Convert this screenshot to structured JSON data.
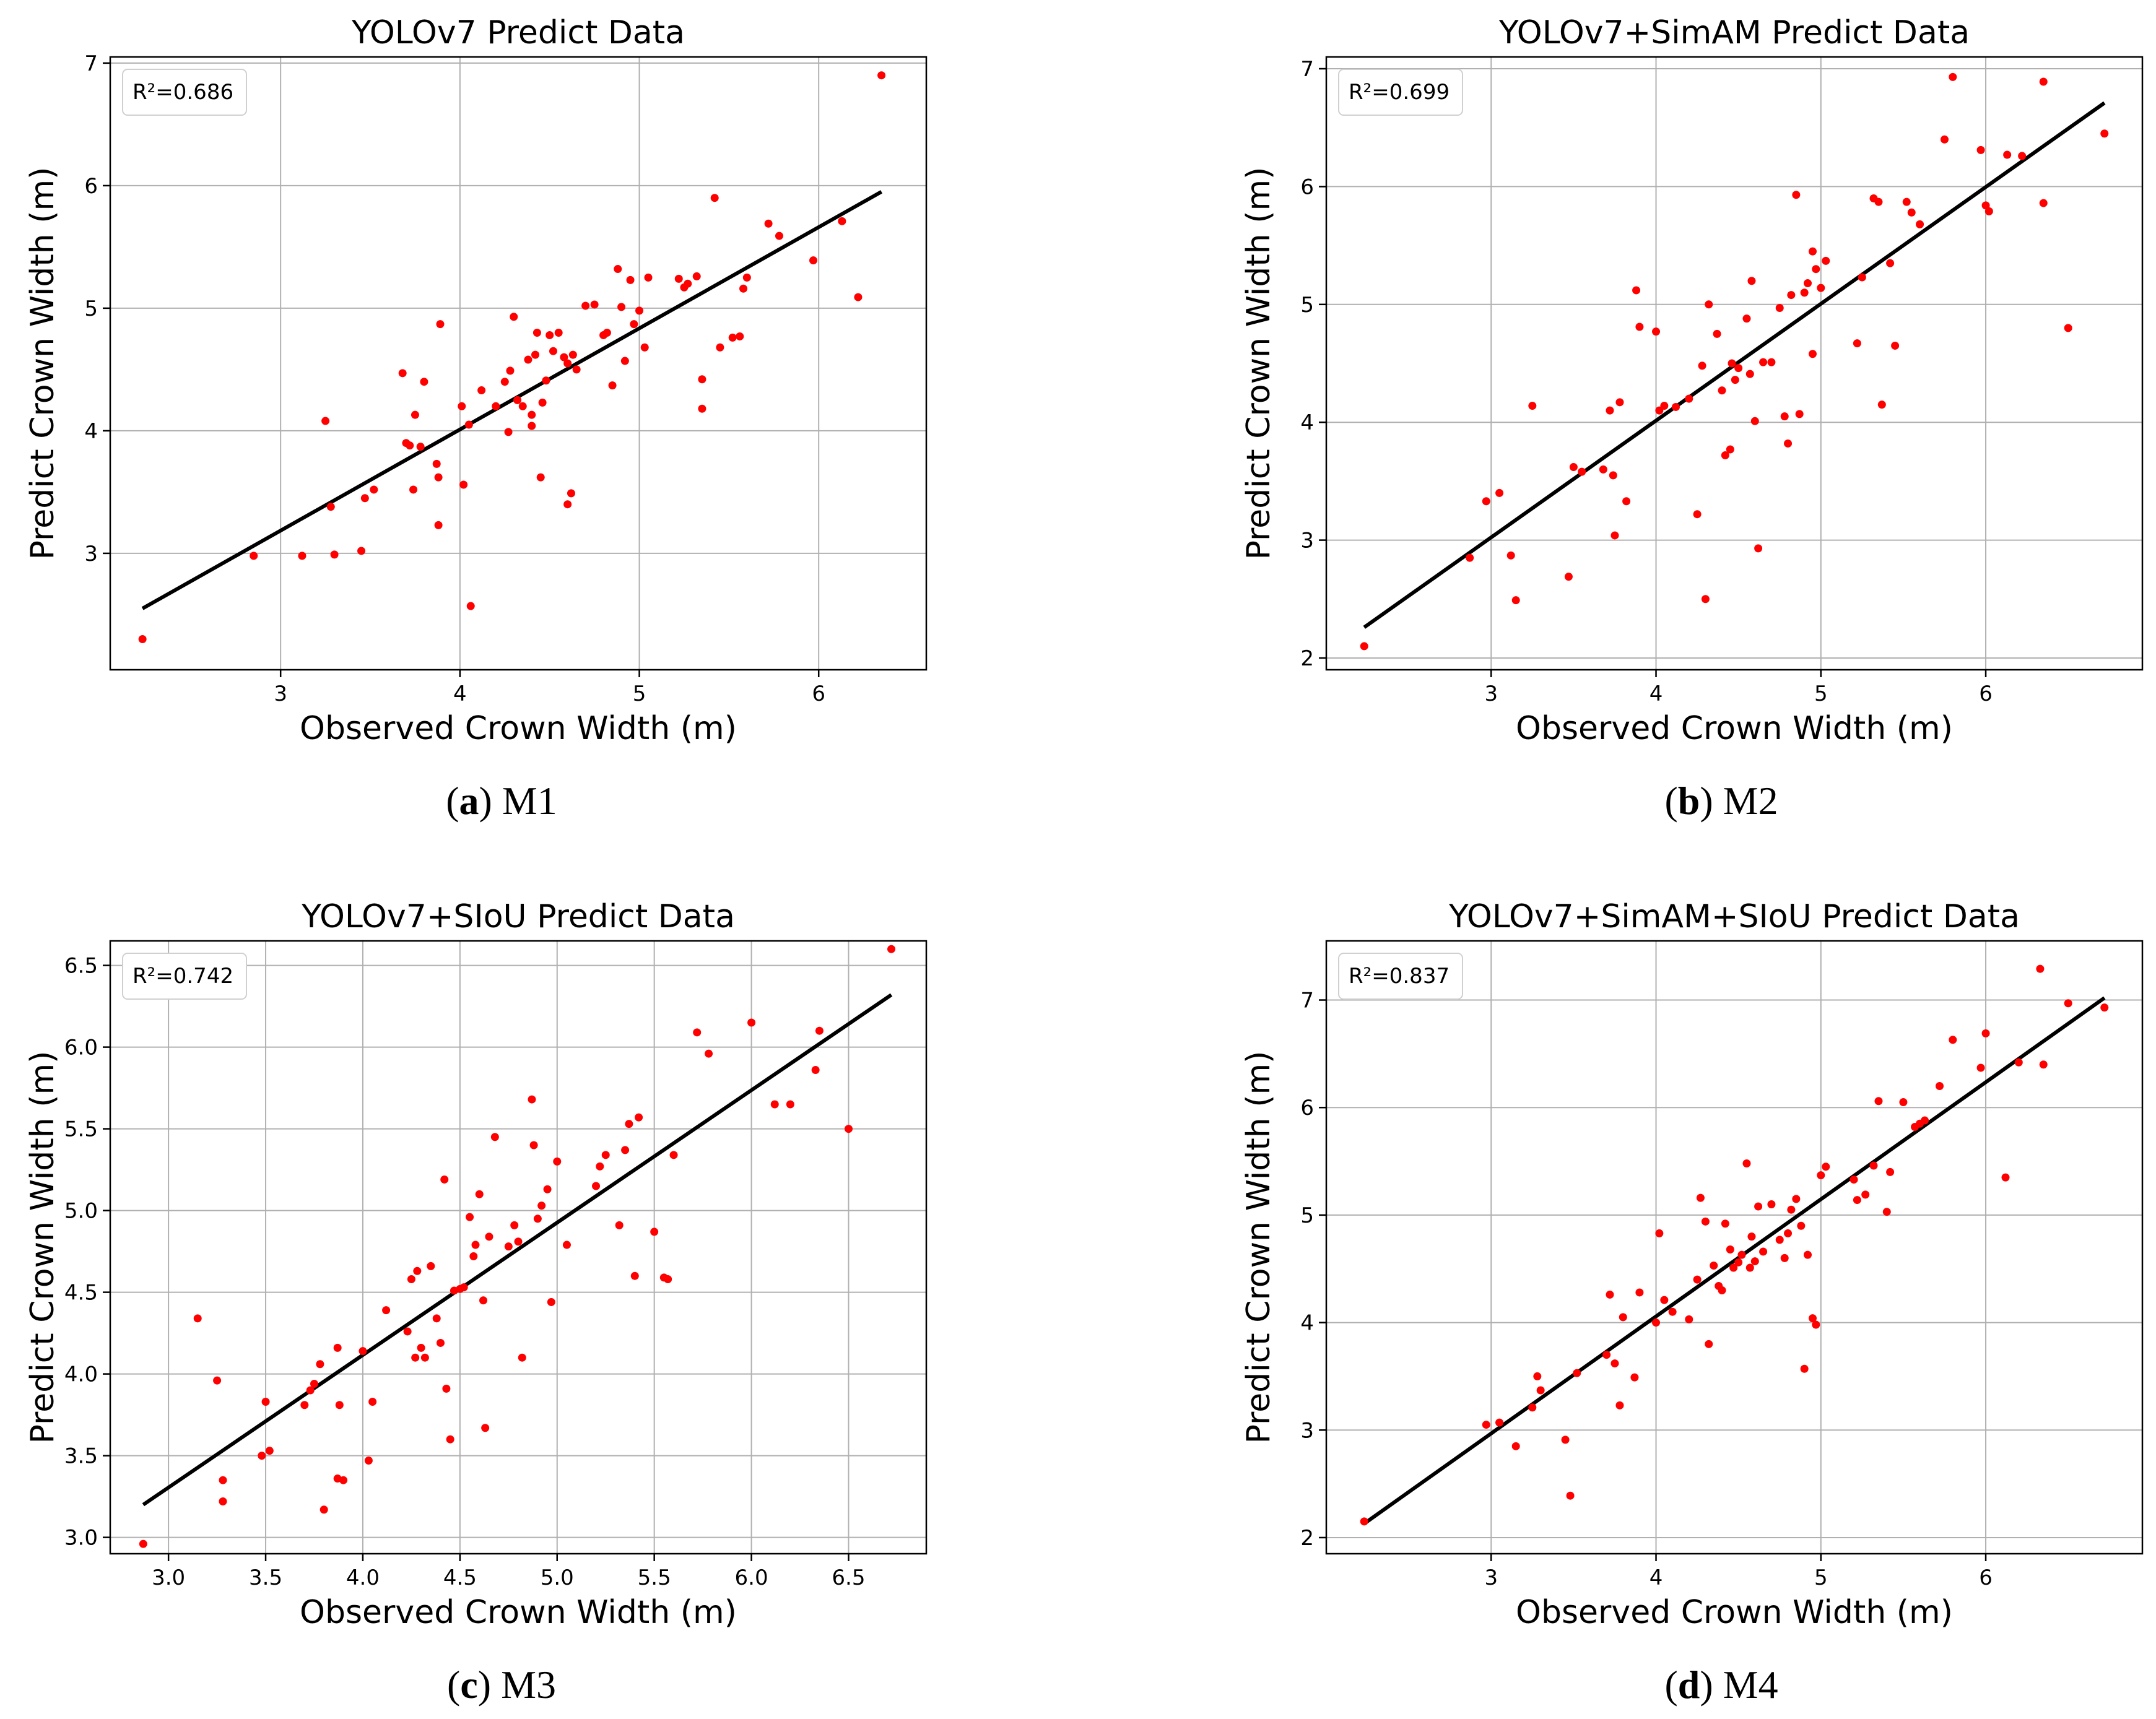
{
  "chart_data": [
    {
      "type": "scatter",
      "title": "YOLOv7 Predict Data",
      "xlabel": "Observed Crown Width   (m)",
      "ylabel": "Predict Crown Width     (m)",
      "annotation": "R²=0.686",
      "caption_letter": "a",
      "caption_model": "M1",
      "xlim": [
        2.05,
        6.6
      ],
      "ylim": [
        2.05,
        7.05
      ],
      "xticks": [
        3,
        4,
        5,
        6
      ],
      "yticks": [
        3,
        4,
        5,
        6,
        7
      ],
      "xtick_labels": [
        "3",
        "4",
        "5",
        "6"
      ],
      "ytick_labels": [
        "3",
        "4",
        "5",
        "6",
        "7"
      ],
      "fit_line": {
        "x": [
          2.23,
          6.35
        ],
        "y": [
          2.55,
          5.95
        ]
      },
      "series": [
        {
          "name": "points",
          "color": "#ff0000",
          "x": [
            2.23,
            2.85,
            3.12,
            3.25,
            3.28,
            3.3,
            3.45,
            3.47,
            3.52,
            3.68,
            3.7,
            3.72,
            3.74,
            3.75,
            3.78,
            3.8,
            3.87,
            3.88,
            3.88,
            3.89,
            4.01,
            4.02,
            4.05,
            4.06,
            4.12,
            4.2,
            4.25,
            4.27,
            4.28,
            4.3,
            4.32,
            4.35,
            4.38,
            4.4,
            4.4,
            4.42,
            4.43,
            4.45,
            4.46,
            4.48,
            4.5,
            4.52,
            4.55,
            4.58,
            4.6,
            4.6,
            4.62,
            4.63,
            4.65,
            4.7,
            4.75,
            4.8,
            4.82,
            4.85,
            4.88,
            4.9,
            4.92,
            4.95,
            4.97,
            5.0,
            5.03,
            5.05,
            5.22,
            5.25,
            5.27,
            5.32,
            5.35,
            5.35,
            5.42,
            5.45,
            5.52,
            5.56,
            5.58,
            5.6,
            5.72,
            5.78,
            5.97,
            6.13,
            6.22,
            6.35
          ],
          "y": [
            2.3,
            2.98,
            2.98,
            4.08,
            3.38,
            2.99,
            3.02,
            3.45,
            3.52,
            4.47,
            3.9,
            3.88,
            3.52,
            4.13,
            3.87,
            4.4,
            3.73,
            3.23,
            3.62,
            4.87,
            4.2,
            3.56,
            4.05,
            2.57,
            4.33,
            4.2,
            4.4,
            3.99,
            4.49,
            4.93,
            4.25,
            4.2,
            4.58,
            4.13,
            4.04,
            4.62,
            4.8,
            3.62,
            4.23,
            4.41,
            4.78,
            4.65,
            4.8,
            4.6,
            3.4,
            4.55,
            3.49,
            4.62,
            4.5,
            5.02,
            5.03,
            4.78,
            4.8,
            4.37,
            5.32,
            5.01,
            4.57,
            5.23,
            4.87,
            4.98,
            4.68,
            5.25,
            5.24,
            5.17,
            5.2,
            5.26,
            4.42,
            4.18,
            5.9,
            4.68,
            4.76,
            4.77,
            5.16,
            5.25,
            5.69,
            5.59,
            5.39,
            5.71,
            5.09,
            6.9
          ]
        }
      ]
    },
    {
      "type": "scatter",
      "title": "YOLOv7+SimAM Predict Data",
      "xlabel": "Observed Crown Width   (m)",
      "ylabel": "Predict Crown Width     (m)",
      "annotation": "R²=0.699",
      "caption_letter": "b",
      "caption_model": "M2",
      "xlim": [
        2.0,
        6.95
      ],
      "ylim": [
        1.9,
        7.1
      ],
      "xticks": [
        3,
        4,
        5,
        6
      ],
      "yticks": [
        2,
        3,
        4,
        5,
        6,
        7
      ],
      "xtick_labels": [
        "3",
        "4",
        "5",
        "6"
      ],
      "ytick_labels": [
        "2",
        "3",
        "4",
        "5",
        "6",
        "7"
      ],
      "fit_line": {
        "x": [
          2.23,
          6.72
        ],
        "y": [
          2.26,
          6.71
        ]
      },
      "series": [
        {
          "name": "points",
          "color": "#ff0000",
          "x": [
            2.23,
            2.87,
            2.97,
            3.05,
            3.12,
            3.15,
            3.25,
            3.47,
            3.5,
            3.55,
            3.68,
            3.72,
            3.74,
            3.75,
            3.78,
            3.82,
            3.88,
            3.9,
            4.0,
            4.02,
            4.05,
            4.12,
            4.2,
            4.25,
            4.28,
            4.3,
            4.32,
            4.37,
            4.4,
            4.42,
            4.45,
            4.46,
            4.48,
            4.5,
            4.55,
            4.57,
            4.58,
            4.6,
            4.62,
            4.65,
            4.7,
            4.75,
            4.78,
            4.8,
            4.82,
            4.85,
            4.87,
            4.9,
            4.92,
            4.95,
            4.95,
            4.97,
            5.0,
            5.03,
            5.22,
            5.25,
            5.32,
            5.35,
            5.37,
            5.42,
            5.45,
            5.52,
            5.55,
            5.6,
            5.75,
            5.8,
            5.97,
            6.0,
            6.02,
            6.13,
            6.22,
            6.35,
            6.35,
            6.5,
            6.72
          ],
          "y": [
            2.1,
            2.85,
            3.33,
            3.4,
            2.87,
            2.49,
            4.14,
            2.69,
            3.62,
            3.58,
            3.6,
            4.1,
            3.55,
            3.04,
            4.17,
            3.33,
            5.12,
            4.81,
            4.77,
            4.1,
            4.14,
            4.13,
            4.2,
            3.22,
            4.48,
            2.5,
            5.0,
            4.75,
            4.27,
            3.72,
            3.77,
            4.5,
            4.36,
            4.46,
            4.88,
            4.41,
            5.2,
            4.01,
            2.93,
            4.51,
            4.51,
            4.97,
            4.05,
            3.82,
            5.08,
            5.93,
            4.07,
            5.1,
            5.18,
            5.45,
            4.58,
            5.3,
            5.14,
            5.37,
            4.67,
            5.23,
            5.9,
            5.87,
            4.15,
            5.35,
            4.65,
            5.87,
            5.78,
            5.68,
            6.4,
            6.93,
            6.31,
            5.84,
            5.79,
            6.27,
            6.26,
            5.86,
            6.89,
            4.8,
            6.45
          ]
        }
      ]
    },
    {
      "type": "scatter",
      "title": "YOLOv7+SIoU Predict Data",
      "xlabel": "Observed Crown Width   (m)",
      "ylabel": "Predict Crown Width     (m)",
      "annotation": "R²=0.742",
      "caption_letter": "c",
      "caption_model": "M3",
      "xlim": [
        2.7,
        6.9
      ],
      "ylim": [
        2.9,
        6.65
      ],
      "xticks": [
        3.0,
        3.5,
        4.0,
        4.5,
        5.0,
        5.5,
        6.0,
        6.5
      ],
      "yticks": [
        3.0,
        3.5,
        4.0,
        4.5,
        5.0,
        5.5,
        6.0,
        6.5
      ],
      "xtick_labels": [
        "3.0",
        "3.5",
        "4.0",
        "4.5",
        "5.0",
        "5.5",
        "6.0",
        "6.5"
      ],
      "ytick_labels": [
        "3.0",
        "3.5",
        "4.0",
        "4.5",
        "5.0",
        "5.5",
        "6.0",
        "6.5"
      ],
      "fit_line": {
        "x": [
          2.87,
          6.72
        ],
        "y": [
          3.2,
          6.32
        ]
      },
      "series": [
        {
          "name": "points",
          "color": "#ff0000",
          "x": [
            2.87,
            3.15,
            3.25,
            3.28,
            3.28,
            3.48,
            3.5,
            3.52,
            3.7,
            3.73,
            3.75,
            3.78,
            3.8,
            3.87,
            3.87,
            3.88,
            3.9,
            4.0,
            4.03,
            4.05,
            4.12,
            4.23,
            4.25,
            4.27,
            4.28,
            4.3,
            4.32,
            4.35,
            4.38,
            4.4,
            4.42,
            4.43,
            4.45,
            4.47,
            4.5,
            4.52,
            4.55,
            4.57,
            4.58,
            4.6,
            4.62,
            4.63,
            4.65,
            4.68,
            4.75,
            4.78,
            4.8,
            4.82,
            4.87,
            4.88,
            4.9,
            4.92,
            4.95,
            4.97,
            5.0,
            5.05,
            5.2,
            5.22,
            5.25,
            5.32,
            5.35,
            5.37,
            5.4,
            5.42,
            5.5,
            5.55,
            5.57,
            5.6,
            5.72,
            5.78,
            6.0,
            6.12,
            6.2,
            6.33,
            6.35,
            6.5,
            6.72
          ],
          "y": [
            2.96,
            4.34,
            3.96,
            3.35,
            3.22,
            3.5,
            3.83,
            3.53,
            3.81,
            3.9,
            3.94,
            4.06,
            3.17,
            3.36,
            4.16,
            3.81,
            3.35,
            4.14,
            3.47,
            3.83,
            4.39,
            4.26,
            4.58,
            4.1,
            4.63,
            4.16,
            4.1,
            4.66,
            4.34,
            4.19,
            5.19,
            3.91,
            3.6,
            4.51,
            4.52,
            4.53,
            4.96,
            4.72,
            4.79,
            5.1,
            4.45,
            3.67,
            4.84,
            5.45,
            4.78,
            4.91,
            4.81,
            4.1,
            5.68,
            5.4,
            4.95,
            5.03,
            5.13,
            4.44,
            5.3,
            4.79,
            5.15,
            5.27,
            5.34,
            4.91,
            5.37,
            5.53,
            4.6,
            5.57,
            4.87,
            4.59,
            4.58,
            5.34,
            6.09,
            5.96,
            6.15,
            5.65,
            5.65,
            5.86,
            6.1,
            5.5,
            6.6
          ]
        }
      ]
    },
    {
      "type": "scatter",
      "title": "YOLOv7+SimAM+SIoU Predict Data",
      "xlabel": "Observed Crown Width   (m)",
      "ylabel": "Predict Crown Width     (m)",
      "annotation": "R²=0.837",
      "caption_letter": "d",
      "caption_model": "M4",
      "xlim": [
        2.0,
        6.95
      ],
      "ylim": [
        1.85,
        7.55
      ],
      "xticks": [
        3,
        4,
        5,
        6
      ],
      "yticks": [
        2,
        3,
        4,
        5,
        6,
        7
      ],
      "xtick_labels": [
        "3",
        "4",
        "5",
        "6"
      ],
      "ytick_labels": [
        "2",
        "3",
        "4",
        "5",
        "6",
        "7"
      ],
      "fit_line": {
        "x": [
          2.23,
          6.72
        ],
        "y": [
          2.13,
          7.02
        ]
      },
      "series": [
        {
          "name": "points",
          "color": "#ff0000",
          "x": [
            2.23,
            2.97,
            3.05,
            3.15,
            3.25,
            3.28,
            3.3,
            3.45,
            3.48,
            3.52,
            3.7,
            3.72,
            3.75,
            3.78,
            3.8,
            3.87,
            3.9,
            4.0,
            4.02,
            4.05,
            4.1,
            4.2,
            4.25,
            4.27,
            4.3,
            4.32,
            4.35,
            4.38,
            4.4,
            4.42,
            4.45,
            4.47,
            4.5,
            4.52,
            4.55,
            4.57,
            4.58,
            4.6,
            4.62,
            4.65,
            4.7,
            4.75,
            4.78,
            4.8,
            4.82,
            4.85,
            4.88,
            4.9,
            4.92,
            4.95,
            4.97,
            5.0,
            5.03,
            5.2,
            5.22,
            5.27,
            5.32,
            5.35,
            5.4,
            5.42,
            5.5,
            5.57,
            5.6,
            5.63,
            5.72,
            5.8,
            5.97,
            6.0,
            6.12,
            6.2,
            6.33,
            6.35,
            6.5,
            6.72
          ],
          "y": [
            2.15,
            3.05,
            3.07,
            2.85,
            3.21,
            3.5,
            3.37,
            2.91,
            2.39,
            3.53,
            3.7,
            4.26,
            3.62,
            3.23,
            4.05,
            3.49,
            4.28,
            4.0,
            4.83,
            4.21,
            4.1,
            4.03,
            4.4,
            5.16,
            4.94,
            3.8,
            4.53,
            4.34,
            4.3,
            4.92,
            4.68,
            4.51,
            4.56,
            4.63,
            5.48,
            4.51,
            4.8,
            4.57,
            5.08,
            4.66,
            5.1,
            4.77,
            4.6,
            4.83,
            5.05,
            5.15,
            4.9,
            3.57,
            4.63,
            4.04,
            3.98,
            5.37,
            5.45,
            5.33,
            5.14,
            5.19,
            5.46,
            6.06,
            5.03,
            5.4,
            6.05,
            5.82,
            5.85,
            5.88,
            6.2,
            6.63,
            6.37,
            6.69,
            5.35,
            6.42,
            7.29,
            6.4,
            6.97,
            6.93
          ]
        }
      ]
    }
  ]
}
